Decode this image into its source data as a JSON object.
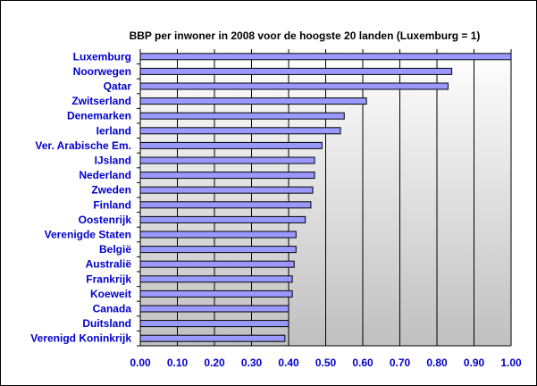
{
  "chart_data": {
    "type": "bar",
    "orientation": "horizontal",
    "title": "BBP per inwoner in 2008 voor de hoogste 20 landen (Luxemburg = 1)",
    "xlabel": "",
    "ylabel": "",
    "xlim": [
      0,
      1
    ],
    "xticks": [
      "0.00",
      "0.10",
      "0.20",
      "0.30",
      "0.40",
      "0.50",
      "0.60",
      "0.70",
      "0.80",
      "0.90",
      "1.00"
    ],
    "grid": "vertical",
    "categories": [
      "Luxemburg",
      "Noorwegen",
      "Qatar",
      "Zwitserland",
      "Denemarken",
      "Ierland",
      "Ver. Arabische Em.",
      "IJsland",
      "Nederland",
      "Zweden",
      "Finland",
      "Oostenrijk",
      "Verenigde Staten",
      "België",
      "Australië",
      "Frankrijk",
      "Koeweit",
      "Canada",
      "Duitsland",
      "Verenigd Koninkrijk"
    ],
    "values": [
      1.0,
      0.84,
      0.83,
      0.61,
      0.55,
      0.54,
      0.49,
      0.47,
      0.47,
      0.465,
      0.46,
      0.445,
      0.42,
      0.42,
      0.415,
      0.41,
      0.41,
      0.4,
      0.4,
      0.39
    ],
    "colors": {
      "bar_fill": "#9999ff",
      "bar_stroke": "#000000",
      "plot_fill": "#c0c0c0",
      "label_color": "#0000cc",
      "grid_color": "#000000"
    }
  }
}
